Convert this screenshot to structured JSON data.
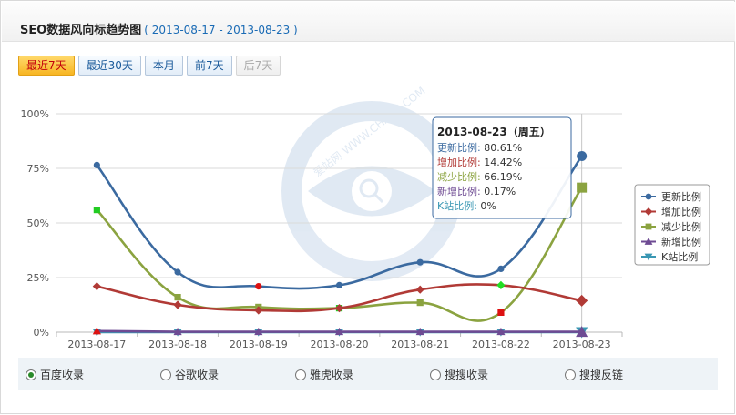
{
  "header": {
    "title": "SEO数据风向标趋势图",
    "date_range": "( 2013-08-17 - 2013-08-23 )"
  },
  "range_buttons": [
    {
      "label": "最近7天",
      "state": "active"
    },
    {
      "label": "最近30天",
      "state": "normal"
    },
    {
      "label": "本月",
      "state": "normal"
    },
    {
      "label": "前7天",
      "state": "normal"
    },
    {
      "label": "后7天",
      "state": "disabled"
    }
  ],
  "watermark": {
    "text": "爱站网 WWW.CHAOJI.COM"
  },
  "tooltip": {
    "title": "2013-08-23（周五）",
    "rows": [
      {
        "label": "更新比例",
        "value": "80.61%",
        "color": "#3b6aa0"
      },
      {
        "label": "增加比例",
        "value": "14.42%",
        "color": "#b13a36"
      },
      {
        "label": "减少比例",
        "value": "66.19%",
        "color": "#8ba340"
      },
      {
        "label": "新增比例",
        "value": "0.17%",
        "color": "#6e4b93"
      },
      {
        "label": "K站比例",
        "value": "0%",
        "color": "#3a97b3"
      }
    ]
  },
  "chart_data": {
    "type": "line",
    "title": "",
    "xlabel": "",
    "ylabel": "",
    "categories": [
      "2013-08-17",
      "2013-08-18",
      "2013-08-19",
      "2013-08-20",
      "2013-08-21",
      "2013-08-22",
      "2013-08-23"
    ],
    "y_ticks": [
      "0%",
      "25%",
      "50%",
      "75%",
      "100%"
    ],
    "ylim": [
      0,
      100
    ],
    "grid": true,
    "legend_position": "right",
    "series": [
      {
        "name": "更新比例",
        "color": "#3b6aa0",
        "marker": "circle",
        "values": [
          76.5,
          27.5,
          21.0,
          21.5,
          32.0,
          29.0,
          80.61
        ]
      },
      {
        "name": "增加比例",
        "color": "#b13a36",
        "marker": "diamond",
        "values": [
          21.0,
          12.5,
          10.0,
          11.0,
          19.5,
          21.5,
          14.42
        ]
      },
      {
        "name": "减少比例",
        "color": "#8ba340",
        "marker": "square",
        "values": [
          56.0,
          16.0,
          11.5,
          11.0,
          13.5,
          9.0,
          66.19
        ]
      },
      {
        "name": "新增比例",
        "color": "#6e4b93",
        "marker": "triangle",
        "values": [
          0.5,
          0.2,
          0.2,
          0.2,
          0.2,
          0.2,
          0.17
        ]
      },
      {
        "name": "K站比例",
        "color": "#3a97b3",
        "marker": "triangle-down",
        "values": [
          0,
          0,
          0,
          0,
          0,
          0,
          0
        ]
      }
    ],
    "highlights": [
      {
        "series": "更新比例",
        "category": "2013-08-19",
        "color": "#dd1111"
      },
      {
        "series": "减少比例",
        "category": "2013-08-17",
        "color": "#22cc22"
      },
      {
        "series": "减少比例",
        "category": "2013-08-20",
        "color": "#22cc22"
      },
      {
        "series": "增加比例",
        "category": "2013-08-22",
        "color": "#22dd22"
      },
      {
        "series": "减少比例",
        "category": "2013-08-22",
        "color": "#dd1111"
      },
      {
        "series": "新增比例",
        "category": "2013-08-17",
        "color": "#dd1111"
      }
    ],
    "hover_category": "2013-08-23"
  },
  "search_engines": [
    {
      "label": "百度收录",
      "checked": true
    },
    {
      "label": "谷歌收录",
      "checked": false
    },
    {
      "label": "雅虎收录",
      "checked": false
    },
    {
      "label": "搜搜收录",
      "checked": false
    },
    {
      "label": "搜搜反链",
      "checked": false
    }
  ]
}
